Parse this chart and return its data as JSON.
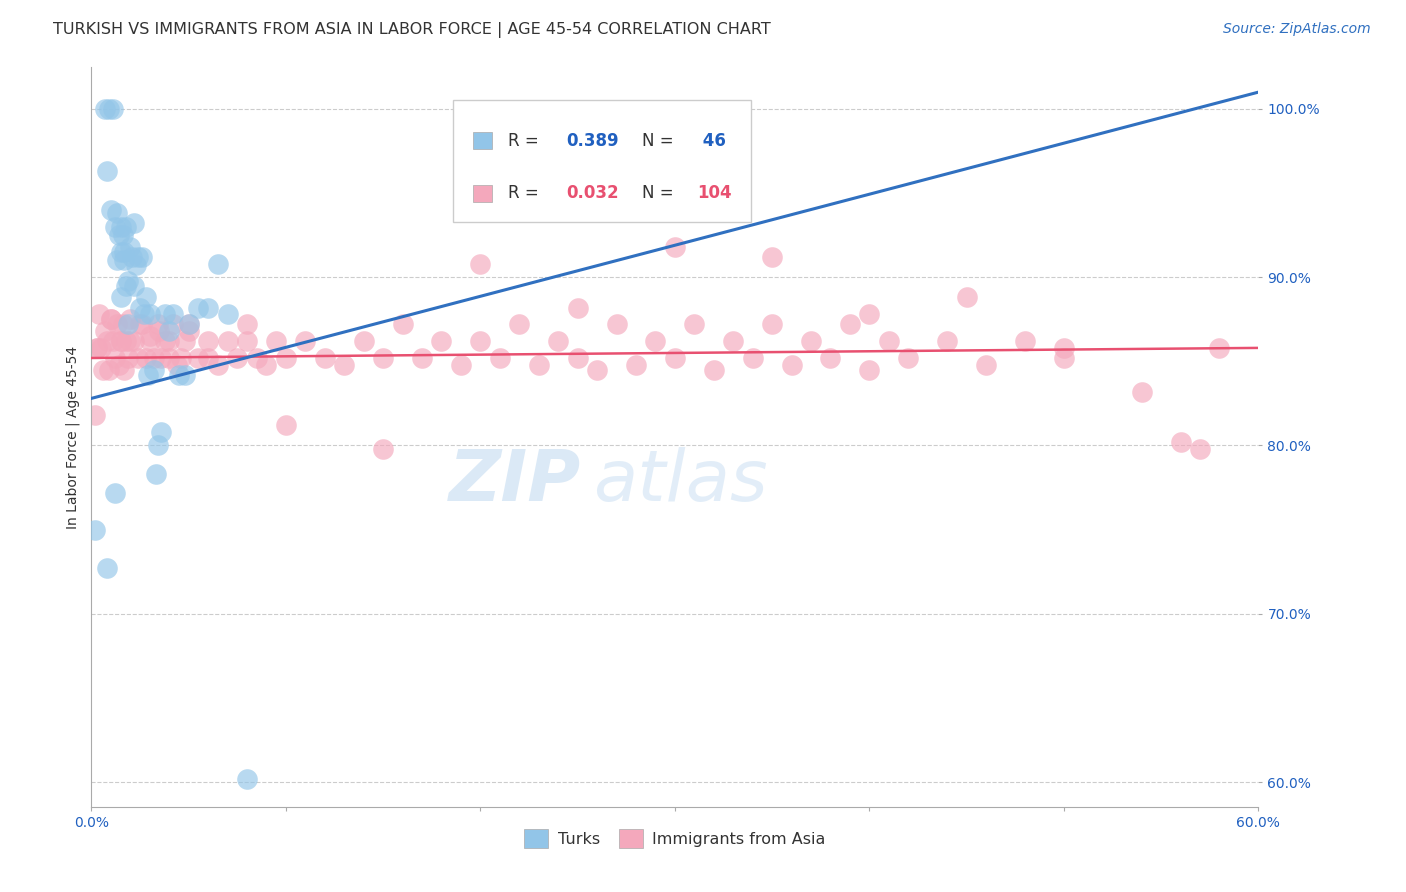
{
  "title": "TURKISH VS IMMIGRANTS FROM ASIA IN LABOR FORCE | AGE 45-54 CORRELATION CHART",
  "source": "Source: ZipAtlas.com",
  "ylabel": "In Labor Force | Age 45-54",
  "xlim": [
    0.0,
    0.6
  ],
  "ylim": [
    0.585,
    1.025
  ],
  "xticks": [
    0.0,
    0.1,
    0.2,
    0.3,
    0.4,
    0.5,
    0.6
  ],
  "xticklabels": [
    "0.0%",
    "",
    "",
    "",
    "",
    "",
    "60.0%"
  ],
  "yticks": [
    0.6,
    0.7,
    0.8,
    0.9,
    1.0
  ],
  "yticklabels": [
    "60.0%",
    "70.0%",
    "80.0%",
    "90.0%",
    "100.0%"
  ],
  "blue_color": "#92C5E8",
  "pink_color": "#F4A8BC",
  "blue_line_color": "#3070C0",
  "pink_line_color": "#E85070",
  "watermark_zip": "ZIP",
  "watermark_atlas": "atlas",
  "background_color": "#FFFFFF",
  "grid_color": "#CCCCCC",
  "title_fontsize": 11.5,
  "axis_label_fontsize": 10,
  "tick_fontsize": 10,
  "legend_fontsize": 12,
  "source_fontsize": 10,
  "blue_trend_x": [
    0.0,
    0.6
  ],
  "blue_trend_y": [
    0.828,
    1.01
  ],
  "pink_trend_x": [
    0.0,
    0.6
  ],
  "pink_trend_y": [
    0.852,
    0.858
  ],
  "turks_x": [
    0.007,
    0.009,
    0.011,
    0.008,
    0.01,
    0.013,
    0.012,
    0.014,
    0.013,
    0.015,
    0.015,
    0.016,
    0.015,
    0.017,
    0.018,
    0.017,
    0.019,
    0.018,
    0.02,
    0.019,
    0.021,
    0.022,
    0.023,
    0.022,
    0.024,
    0.025,
    0.026,
    0.027,
    0.028,
    0.03,
    0.029,
    0.032,
    0.034,
    0.033,
    0.036,
    0.038,
    0.04,
    0.042,
    0.045,
    0.048,
    0.05,
    0.055,
    0.06,
    0.065,
    0.07,
    0.08
  ],
  "turks_y": [
    1.0,
    1.0,
    1.0,
    0.963,
    0.94,
    0.938,
    0.93,
    0.925,
    0.91,
    0.93,
    0.915,
    0.925,
    0.888,
    0.915,
    0.93,
    0.91,
    0.898,
    0.895,
    0.918,
    0.872,
    0.912,
    0.895,
    0.907,
    0.932,
    0.912,
    0.882,
    0.912,
    0.878,
    0.888,
    0.878,
    0.842,
    0.845,
    0.8,
    0.783,
    0.808,
    0.878,
    0.868,
    0.878,
    0.842,
    0.842,
    0.872,
    0.882,
    0.882,
    0.908,
    0.878,
    0.602
  ],
  "turks_lowx": [
    0.002,
    0.008,
    0.012
  ],
  "turks_lowy": [
    0.75,
    0.727,
    0.772
  ],
  "asia_x": [
    0.002,
    0.003,
    0.004,
    0.005,
    0.006,
    0.007,
    0.008,
    0.009,
    0.01,
    0.011,
    0.012,
    0.013,
    0.014,
    0.015,
    0.016,
    0.017,
    0.018,
    0.019,
    0.02,
    0.022,
    0.024,
    0.026,
    0.028,
    0.03,
    0.032,
    0.034,
    0.036,
    0.038,
    0.04,
    0.042,
    0.044,
    0.046,
    0.048,
    0.05,
    0.055,
    0.06,
    0.065,
    0.07,
    0.075,
    0.08,
    0.085,
    0.09,
    0.095,
    0.1,
    0.11,
    0.12,
    0.13,
    0.14,
    0.15,
    0.16,
    0.17,
    0.18,
    0.19,
    0.2,
    0.21,
    0.22,
    0.23,
    0.24,
    0.25,
    0.26,
    0.27,
    0.28,
    0.29,
    0.3,
    0.31,
    0.32,
    0.33,
    0.34,
    0.35,
    0.36,
    0.37,
    0.38,
    0.39,
    0.4,
    0.41,
    0.42,
    0.44,
    0.46,
    0.48,
    0.5,
    0.01,
    0.015,
    0.02,
    0.025,
    0.03,
    0.035,
    0.04,
    0.05,
    0.06,
    0.08,
    0.1,
    0.15,
    0.2,
    0.25,
    0.3,
    0.35,
    0.4,
    0.45,
    0.5,
    0.54,
    0.56,
    0.57,
    0.003,
    0.58
  ],
  "asia_y": [
    0.818,
    0.858,
    0.878,
    0.858,
    0.845,
    0.868,
    0.862,
    0.845,
    0.875,
    0.862,
    0.852,
    0.872,
    0.848,
    0.862,
    0.872,
    0.845,
    0.862,
    0.852,
    0.875,
    0.862,
    0.852,
    0.872,
    0.852,
    0.862,
    0.852,
    0.872,
    0.852,
    0.862,
    0.852,
    0.872,
    0.848,
    0.852,
    0.862,
    0.872,
    0.852,
    0.862,
    0.848,
    0.862,
    0.852,
    0.872,
    0.852,
    0.848,
    0.862,
    0.852,
    0.862,
    0.852,
    0.848,
    0.862,
    0.852,
    0.872,
    0.852,
    0.862,
    0.848,
    0.862,
    0.852,
    0.872,
    0.848,
    0.862,
    0.852,
    0.845,
    0.872,
    0.848,
    0.862,
    0.852,
    0.872,
    0.845,
    0.862,
    0.852,
    0.872,
    0.848,
    0.862,
    0.852,
    0.872,
    0.845,
    0.862,
    0.852,
    0.862,
    0.848,
    0.862,
    0.852,
    0.875,
    0.862,
    0.862,
    0.872,
    0.865,
    0.868,
    0.862,
    0.868,
    0.852,
    0.862,
    0.812,
    0.798,
    0.908,
    0.882,
    0.918,
    0.912,
    0.878,
    0.888,
    0.858,
    0.832,
    0.802,
    0.798,
    0.858,
    0.858
  ]
}
